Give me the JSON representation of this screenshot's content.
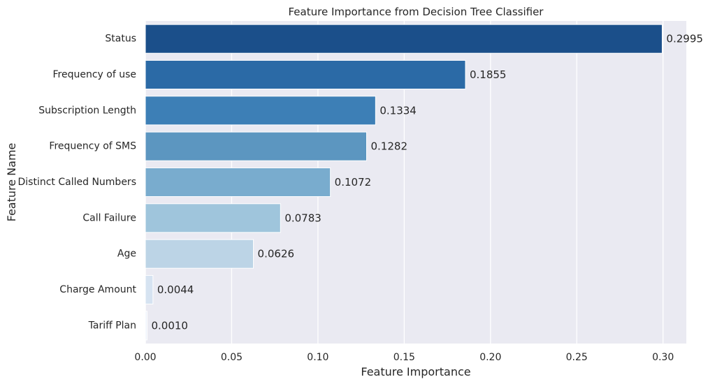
{
  "chart_data": {
    "type": "bar",
    "orientation": "horizontal",
    "title": "Feature Importance from Decision Tree Classifier",
    "xlabel": "Feature Importance",
    "ylabel": "Feature Name",
    "xlim": [
      0,
      0.3135
    ],
    "xticks": [
      0.0,
      0.05,
      0.1,
      0.15,
      0.2,
      0.25,
      0.3
    ],
    "xtick_labels": [
      "0.00",
      "0.05",
      "0.10",
      "0.15",
      "0.20",
      "0.25",
      "0.30"
    ],
    "grid": true,
    "categories": [
      "Status",
      "Frequency of use",
      "Subscription  Length",
      "Frequency of SMS",
      "Distinct Called Numbers",
      "Call  Failure",
      "Age",
      "Charge  Amount",
      "Tariff Plan"
    ],
    "values": [
      0.2995,
      0.1855,
      0.1334,
      0.1282,
      0.1072,
      0.0783,
      0.0626,
      0.0044,
      0.001
    ],
    "value_labels": [
      "0.2995",
      "0.1855",
      "0.1334",
      "0.1282",
      "0.1072",
      "0.0783",
      "0.0626",
      "0.0044",
      "0.0010"
    ],
    "colors": [
      "#1b4f8a",
      "#2b6aa6",
      "#3d7fb6",
      "#5c96c0",
      "#79acce",
      "#9fc5dc",
      "#bcd4e6",
      "#d6e3f1",
      "#edf3fb"
    ],
    "background_color": "#eaeaf2",
    "grid_color": "#ffffff"
  }
}
